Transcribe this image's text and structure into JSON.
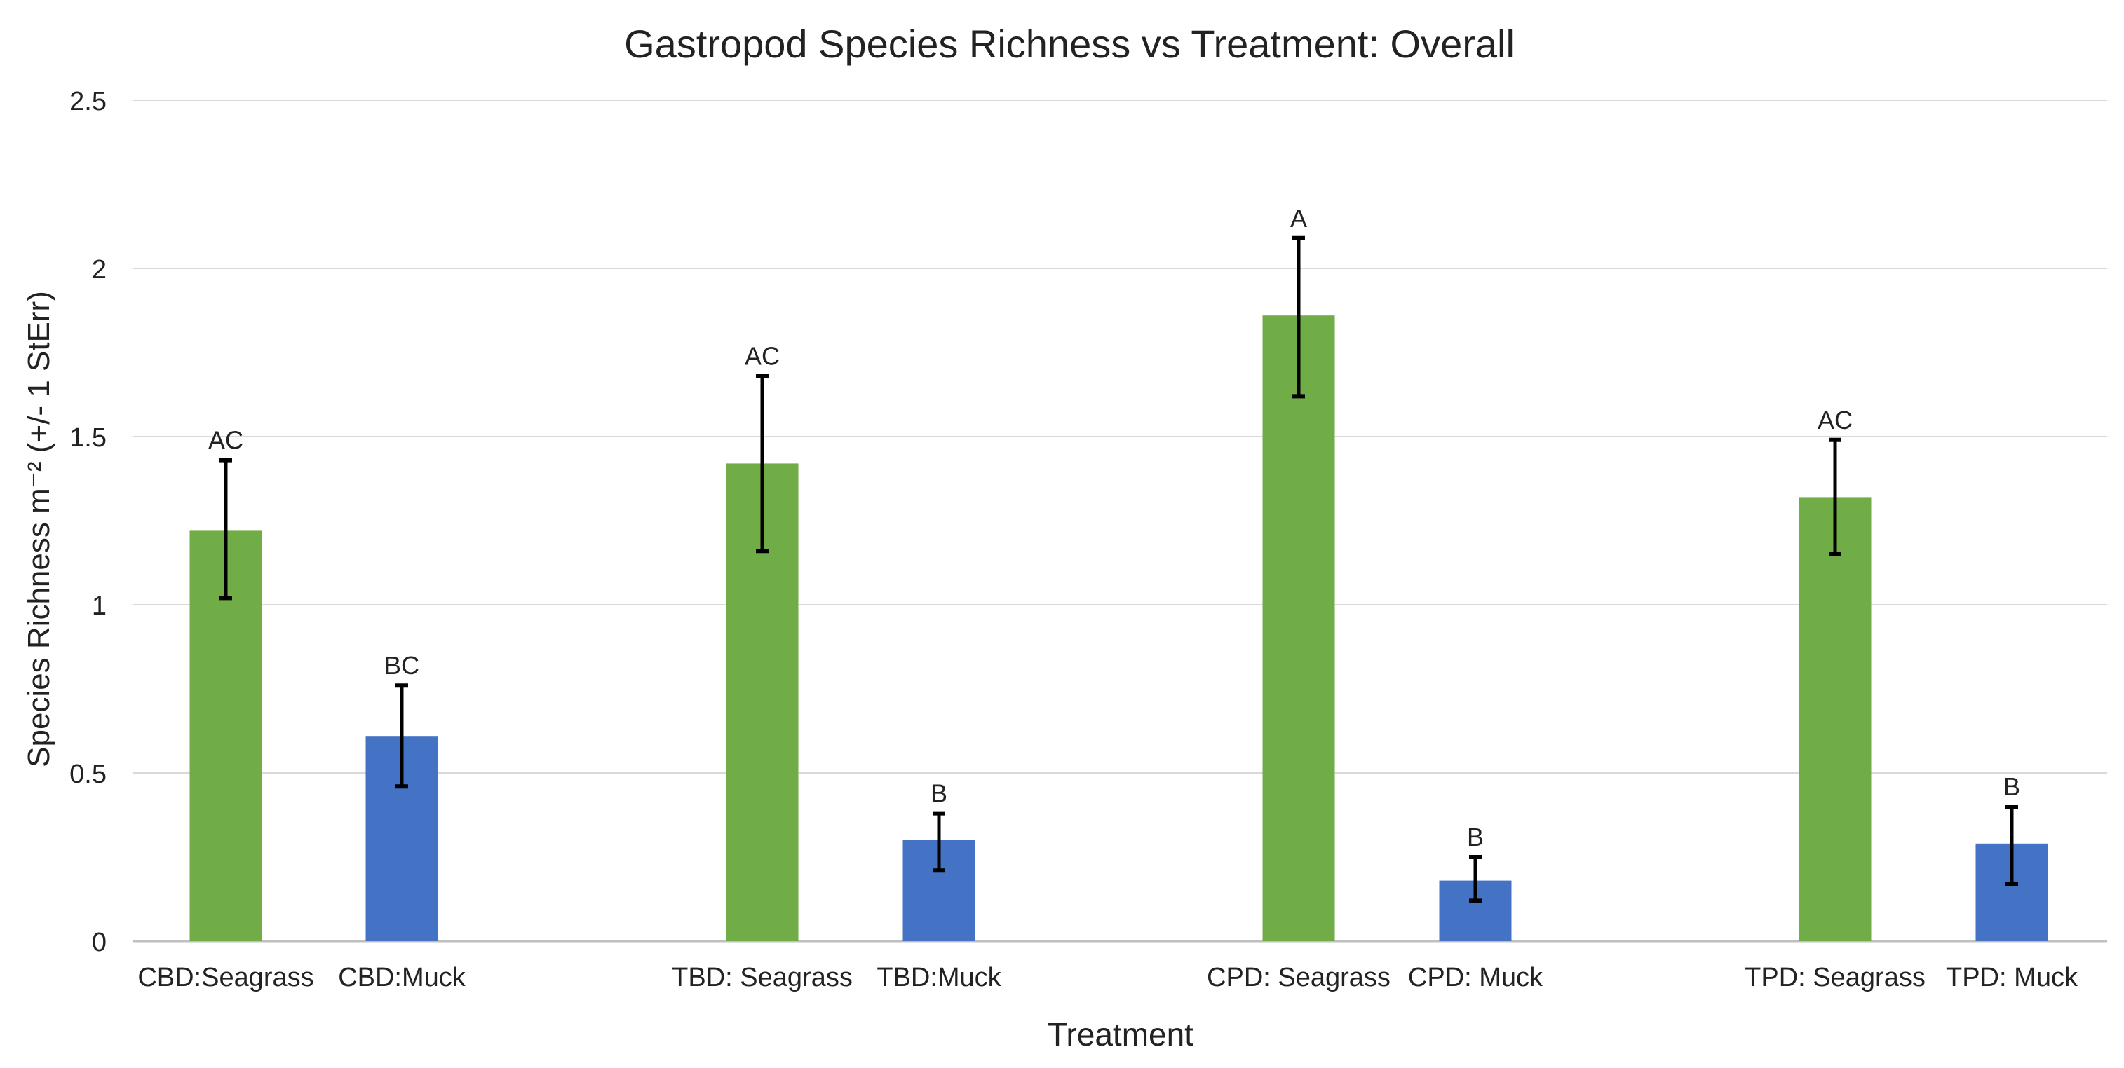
{
  "chart_data": {
    "type": "bar",
    "title": "Gastropod Species Richness vs Treatment: Overall",
    "xlabel": "Treatment",
    "ylabel": "Species Richness m⁻² (+/- 1 StErr)",
    "ylim": [
      0,
      2.5
    ],
    "yticks": [
      "0",
      "0.5",
      "1",
      "1.5",
      "2",
      "2.5"
    ],
    "grid": true,
    "categories": [
      "CBD:Seagrass",
      "CBD:Muck",
      "TBD: Seagrass",
      "TBD:Muck",
      "CPD: Seagrass",
      "CPD: Muck",
      "TPD: Seagrass",
      "TPD: Muck"
    ],
    "values": [
      1.22,
      0.61,
      1.42,
      0.3,
      1.86,
      0.18,
      1.32,
      0.29
    ],
    "error_low": [
      1.02,
      0.46,
      1.16,
      0.21,
      1.62,
      0.12,
      1.15,
      0.17
    ],
    "error_high": [
      1.43,
      0.76,
      1.68,
      0.38,
      2.09,
      0.25,
      1.49,
      0.4
    ],
    "significance_labels": [
      "AC",
      "BC",
      "AC",
      "B",
      "A",
      "B",
      "AC",
      "B"
    ],
    "colors": {
      "seagrass": "#70ad47",
      "muck": "#4472c4",
      "grid": "#d9d9d9",
      "axis": "#bfbfbf",
      "error_bar": "#000000"
    },
    "bar_colors": [
      "seagrass",
      "muck",
      "seagrass",
      "muck",
      "seagrass",
      "muck",
      "seagrass",
      "muck"
    ]
  }
}
